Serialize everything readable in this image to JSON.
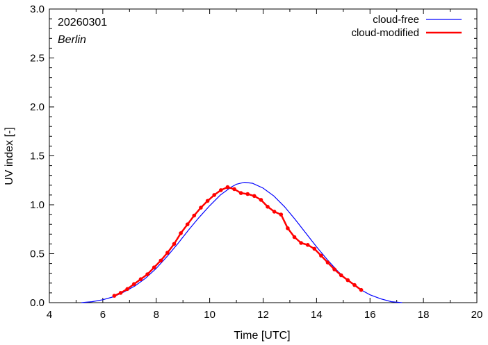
{
  "chart_data": {
    "type": "line",
    "xlabel": "Time  [UTC]",
    "ylabel": "UV index  [-]",
    "xlim": [
      4,
      20
    ],
    "ylim": [
      0,
      3.0
    ],
    "x_ticks": [
      "4",
      "6",
      "8",
      "10",
      "12",
      "14",
      "16",
      "18",
      "20"
    ],
    "y_ticks": [
      "0.0",
      "0.5",
      "1.0",
      "1.5",
      "2.0",
      "2.5",
      "3.0"
    ],
    "grid": false,
    "legend_position": "top-right",
    "annotations": {
      "date": "20260301",
      "location": "Berlin"
    },
    "series": [
      {
        "name": "cloud-free",
        "color": "#0000ff",
        "marker": "none",
        "x": [
          5.2,
          5.6,
          6.0,
          6.4,
          6.8,
          7.2,
          7.6,
          8.0,
          8.4,
          8.8,
          9.2,
          9.6,
          10.0,
          10.4,
          10.8,
          11.0,
          11.3,
          11.6,
          12.0,
          12.4,
          12.8,
          13.2,
          13.6,
          14.0,
          14.4,
          14.8,
          15.2,
          15.6,
          16.0,
          16.4,
          16.8,
          17.2
        ],
        "y": [
          0.0,
          0.01,
          0.03,
          0.06,
          0.11,
          0.17,
          0.25,
          0.35,
          0.47,
          0.6,
          0.74,
          0.87,
          0.99,
          1.1,
          1.18,
          1.21,
          1.23,
          1.22,
          1.17,
          1.09,
          0.98,
          0.85,
          0.71,
          0.57,
          0.44,
          0.32,
          0.22,
          0.14,
          0.08,
          0.04,
          0.01,
          0.0
        ]
      },
      {
        "name": "cloud-modified",
        "color": "#ff0000",
        "marker": "circle",
        "x": [
          6.43,
          6.67,
          6.92,
          7.17,
          7.42,
          7.67,
          7.92,
          8.17,
          8.42,
          8.67,
          8.92,
          9.17,
          9.42,
          9.67,
          9.92,
          10.17,
          10.42,
          10.67,
          10.92,
          11.17,
          11.42,
          11.67,
          11.92,
          12.17,
          12.42,
          12.67,
          12.92,
          13.17,
          13.42,
          13.67,
          13.92,
          14.17,
          14.42,
          14.67,
          14.92,
          15.17,
          15.42,
          15.67
        ],
        "y": [
          0.07,
          0.1,
          0.14,
          0.19,
          0.24,
          0.29,
          0.36,
          0.43,
          0.51,
          0.6,
          0.71,
          0.8,
          0.89,
          0.97,
          1.04,
          1.1,
          1.15,
          1.18,
          1.16,
          1.12,
          1.11,
          1.09,
          1.05,
          0.98,
          0.93,
          0.9,
          0.76,
          0.67,
          0.61,
          0.59,
          0.55,
          0.48,
          0.41,
          0.34,
          0.28,
          0.23,
          0.18,
          0.13
        ]
      }
    ]
  }
}
